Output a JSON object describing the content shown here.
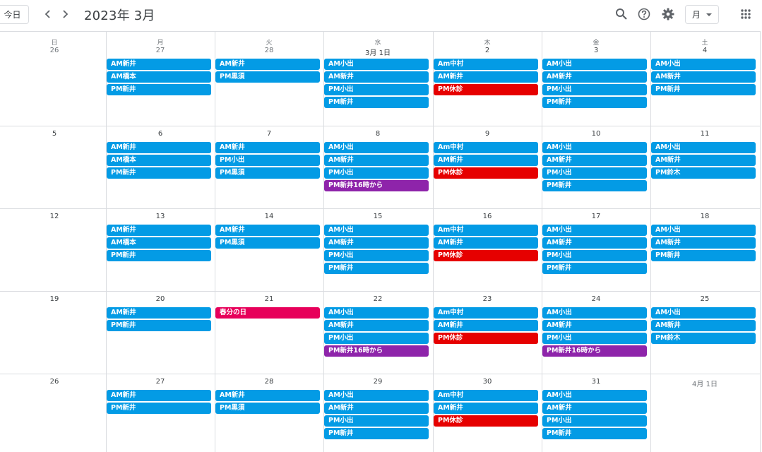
{
  "toolbar": {
    "today_label": "今日",
    "month_title": "2023年 3月",
    "view_label": "月"
  },
  "colors": {
    "blue": "#039be5",
    "red": "#e60000",
    "purple": "#8e24aa",
    "holiday": "#e7005a"
  },
  "weekdays": [
    "日",
    "月",
    "火",
    "水",
    "木",
    "金",
    "土"
  ],
  "weeks": [
    {
      "days": [
        {
          "label": "26",
          "other": true,
          "events": []
        },
        {
          "label": "27",
          "other": true,
          "events": [
            {
              "t": "AM新井",
              "c": "blue"
            },
            {
              "t": "AM橋本",
              "c": "blue"
            },
            {
              "t": "PM新井",
              "c": "blue"
            }
          ]
        },
        {
          "label": "28",
          "other": true,
          "events": [
            {
              "t": "AM新井",
              "c": "blue"
            },
            {
              "t": "PM黒須",
              "c": "blue"
            }
          ]
        },
        {
          "label": "3月 1日",
          "other": false,
          "events": [
            {
              "t": "AM小出",
              "c": "blue"
            },
            {
              "t": "AM新井",
              "c": "blue"
            },
            {
              "t": "PM小出",
              "c": "blue"
            },
            {
              "t": "PM新井",
              "c": "blue"
            }
          ]
        },
        {
          "label": "2",
          "other": false,
          "events": [
            {
              "t": "Am中村",
              "c": "blue"
            },
            {
              "t": "AM新井",
              "c": "blue"
            },
            {
              "t": "PM休診",
              "c": "red"
            }
          ]
        },
        {
          "label": "3",
          "other": false,
          "events": [
            {
              "t": "AM小出",
              "c": "blue"
            },
            {
              "t": "AM新井",
              "c": "blue"
            },
            {
              "t": "PM小出",
              "c": "blue"
            },
            {
              "t": "PM新井",
              "c": "blue"
            }
          ]
        },
        {
          "label": "4",
          "other": false,
          "events": [
            {
              "t": "AM小出",
              "c": "blue"
            },
            {
              "t": "AM新井",
              "c": "blue"
            },
            {
              "t": "PM新井",
              "c": "blue"
            }
          ]
        }
      ]
    },
    {
      "days": [
        {
          "label": "5",
          "other": false,
          "events": []
        },
        {
          "label": "6",
          "other": false,
          "events": [
            {
              "t": "AM新井",
              "c": "blue"
            },
            {
              "t": "AM橋本",
              "c": "blue"
            },
            {
              "t": "PM新井",
              "c": "blue"
            }
          ]
        },
        {
          "label": "7",
          "other": false,
          "events": [
            {
              "t": "AM新井",
              "c": "blue"
            },
            {
              "t": "PM小出",
              "c": "blue"
            },
            {
              "t": "PM黒須",
              "c": "blue"
            }
          ]
        },
        {
          "label": "8",
          "other": false,
          "events": [
            {
              "t": "AM小出",
              "c": "blue"
            },
            {
              "t": "AM新井",
              "c": "blue"
            },
            {
              "t": "PM小出",
              "c": "blue"
            },
            {
              "t": "PM新井16時から",
              "c": "purple"
            }
          ]
        },
        {
          "label": "9",
          "other": false,
          "events": [
            {
              "t": "Am中村",
              "c": "blue"
            },
            {
              "t": "AM新井",
              "c": "blue"
            },
            {
              "t": "PM休診",
              "c": "red"
            }
          ]
        },
        {
          "label": "10",
          "other": false,
          "events": [
            {
              "t": "AM小出",
              "c": "blue"
            },
            {
              "t": "AM新井",
              "c": "blue"
            },
            {
              "t": "PM小出",
              "c": "blue"
            },
            {
              "t": "PM新井",
              "c": "blue"
            }
          ]
        },
        {
          "label": "11",
          "other": false,
          "events": [
            {
              "t": "AM小出",
              "c": "blue"
            },
            {
              "t": "AM新井",
              "c": "blue"
            },
            {
              "t": "PM鈴木",
              "c": "blue"
            }
          ]
        }
      ]
    },
    {
      "days": [
        {
          "label": "12",
          "other": false,
          "events": []
        },
        {
          "label": "13",
          "other": false,
          "events": [
            {
              "t": "AM新井",
              "c": "blue"
            },
            {
              "t": "AM橋本",
              "c": "blue"
            },
            {
              "t": "PM新井",
              "c": "blue"
            }
          ]
        },
        {
          "label": "14",
          "other": false,
          "events": [
            {
              "t": "AM新井",
              "c": "blue"
            },
            {
              "t": "PM黒須",
              "c": "blue"
            }
          ]
        },
        {
          "label": "15",
          "other": false,
          "events": [
            {
              "t": "AM小出",
              "c": "blue"
            },
            {
              "t": "AM新井",
              "c": "blue"
            },
            {
              "t": "PM小出",
              "c": "blue"
            },
            {
              "t": "PM新井",
              "c": "blue"
            }
          ]
        },
        {
          "label": "16",
          "other": false,
          "events": [
            {
              "t": "Am中村",
              "c": "blue"
            },
            {
              "t": "AM新井",
              "c": "blue"
            },
            {
              "t": "PM休診",
              "c": "red"
            }
          ]
        },
        {
          "label": "17",
          "other": false,
          "events": [
            {
              "t": "AM小出",
              "c": "blue"
            },
            {
              "t": "AM新井",
              "c": "blue"
            },
            {
              "t": "PM小出",
              "c": "blue"
            },
            {
              "t": "PM新井",
              "c": "blue"
            }
          ]
        },
        {
          "label": "18",
          "other": false,
          "events": [
            {
              "t": "AM小出",
              "c": "blue"
            },
            {
              "t": "AM新井",
              "c": "blue"
            },
            {
              "t": "PM新井",
              "c": "blue"
            }
          ]
        }
      ]
    },
    {
      "days": [
        {
          "label": "19",
          "other": false,
          "events": []
        },
        {
          "label": "20",
          "other": false,
          "events": [
            {
              "t": "AM新井",
              "c": "blue"
            },
            {
              "t": "PM新井",
              "c": "blue"
            }
          ]
        },
        {
          "label": "21",
          "other": false,
          "events": [
            {
              "t": "春分の日",
              "c": "holiday"
            }
          ]
        },
        {
          "label": "22",
          "other": false,
          "events": [
            {
              "t": "AM小出",
              "c": "blue"
            },
            {
              "t": "AM新井",
              "c": "blue"
            },
            {
              "t": "PM小出",
              "c": "blue"
            },
            {
              "t": "PM新井16時から",
              "c": "purple"
            }
          ]
        },
        {
          "label": "23",
          "other": false,
          "events": [
            {
              "t": "Am中村",
              "c": "blue"
            },
            {
              "t": "AM新井",
              "c": "blue"
            },
            {
              "t": "PM休診",
              "c": "red"
            }
          ]
        },
        {
          "label": "24",
          "other": false,
          "events": [
            {
              "t": "AM小出",
              "c": "blue"
            },
            {
              "t": "AM新井",
              "c": "blue"
            },
            {
              "t": "PM小出",
              "c": "blue"
            },
            {
              "t": "PM新井16時から",
              "c": "purple"
            }
          ]
        },
        {
          "label": "25",
          "other": false,
          "events": [
            {
              "t": "AM小出",
              "c": "blue"
            },
            {
              "t": "AM新井",
              "c": "blue"
            },
            {
              "t": "PM鈴木",
              "c": "blue"
            }
          ]
        }
      ]
    },
    {
      "days": [
        {
          "label": "26",
          "other": false,
          "events": []
        },
        {
          "label": "27",
          "other": false,
          "events": [
            {
              "t": "AM新井",
              "c": "blue"
            },
            {
              "t": "PM新井",
              "c": "blue"
            }
          ]
        },
        {
          "label": "28",
          "other": false,
          "events": [
            {
              "t": "AM新井",
              "c": "blue"
            },
            {
              "t": "PM黒須",
              "c": "blue"
            }
          ]
        },
        {
          "label": "29",
          "other": false,
          "events": [
            {
              "t": "AM小出",
              "c": "blue"
            },
            {
              "t": "AM新井",
              "c": "blue"
            },
            {
              "t": "PM小出",
              "c": "blue"
            },
            {
              "t": "PM新井",
              "c": "blue"
            }
          ]
        },
        {
          "label": "30",
          "other": false,
          "events": [
            {
              "t": "Am中村",
              "c": "blue"
            },
            {
              "t": "AM新井",
              "c": "blue"
            },
            {
              "t": "PM休診",
              "c": "red"
            }
          ]
        },
        {
          "label": "31",
          "other": false,
          "events": [
            {
              "t": "AM小出",
              "c": "blue"
            },
            {
              "t": "AM新井",
              "c": "blue"
            },
            {
              "t": "PM小出",
              "c": "blue"
            },
            {
              "t": "PM新井",
              "c": "blue"
            }
          ]
        },
        {
          "label": "4月 1日",
          "other": true,
          "events": []
        }
      ]
    }
  ]
}
